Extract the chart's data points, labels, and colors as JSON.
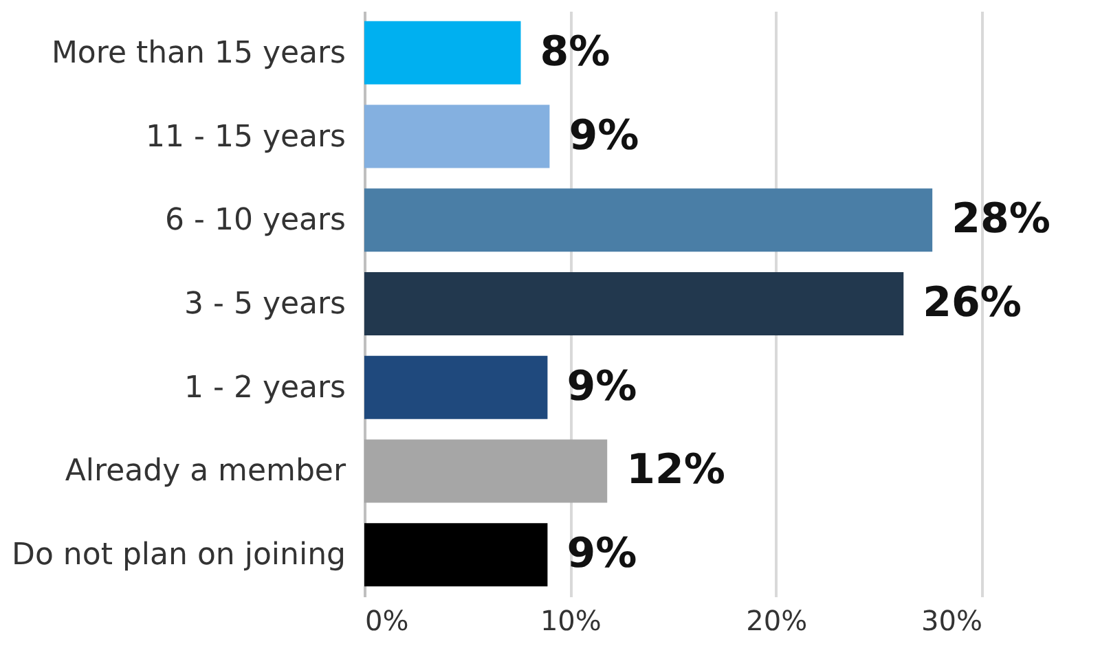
{
  "chart_data": {
    "type": "bar",
    "orientation": "horizontal",
    "categories": [
      "More than 15 years",
      "11 - 15 years",
      "6 - 10 years",
      "3 - 5 years",
      "1 - 2 years",
      "Already a member",
      "Do not plan on joining"
    ],
    "values": [
      7.6,
      9.0,
      27.6,
      26.2,
      8.9,
      11.8,
      8.9
    ],
    "value_labels": [
      "8%",
      "9%",
      "28%",
      "26%",
      "9%",
      "12%",
      "9%"
    ],
    "colors": [
      "#00b0f0",
      "#84b0e0",
      "#4a7ea6",
      "#22384e",
      "#1f497d",
      "#a6a6a6",
      "#000000"
    ],
    "xlim": [
      0,
      30
    ],
    "xticks": [
      {
        "value": 0,
        "label": "0%"
      },
      {
        "value": 10,
        "label": "10%"
      },
      {
        "value": 20,
        "label": "20%"
      },
      {
        "value": 30,
        "label": "30%"
      }
    ],
    "grid": "x"
  }
}
